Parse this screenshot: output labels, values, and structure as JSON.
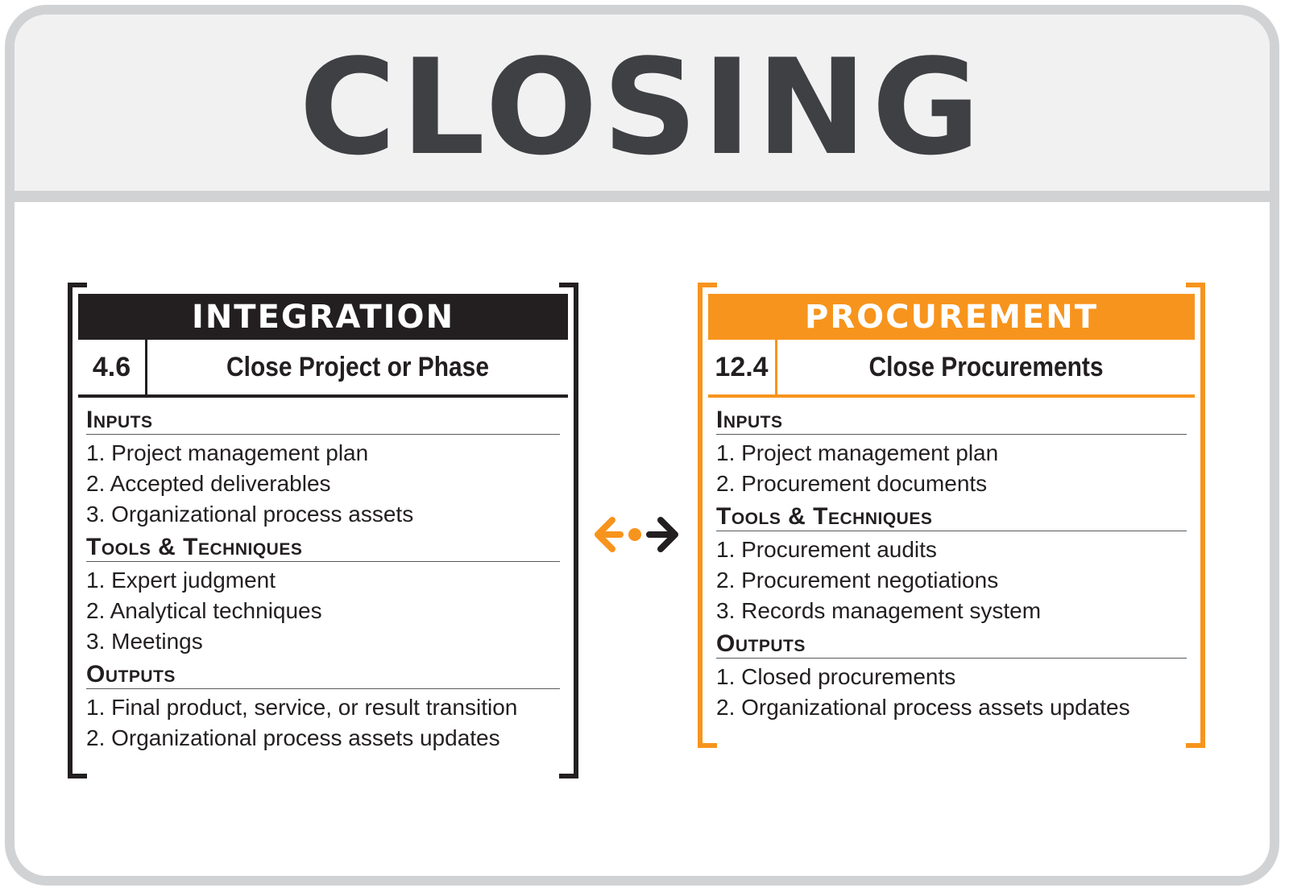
{
  "title": "CLOSING",
  "integration": {
    "area": "INTEGRATION",
    "number": "4.6",
    "process": "Close Project or Phase",
    "inputs_title": "Inputs",
    "inputs": [
      "1. Project management plan",
      "2. Accepted deliverables",
      "3. Organizational process assets"
    ],
    "tools_title": "Tools & Techniques",
    "tools": [
      "1. Expert judgment",
      "2. Analytical techniques",
      "3. Meetings"
    ],
    "outputs_title": "Outputs",
    "outputs": [
      "1. Final product, service, or result transition",
      "2. Organizational process assets updates"
    ],
    "color": "#231f20"
  },
  "procurement": {
    "area": "PROCUREMENT",
    "number": "12.4",
    "process": "Close Procurements",
    "inputs_title": "Inputs",
    "inputs": [
      "1. Project management plan",
      "2. Procurement documents"
    ],
    "tools_title": "Tools & Techniques",
    "tools": [
      "1. Procurement audits",
      "2. Procurement negotiations",
      "3. Records management system"
    ],
    "outputs_title": "Outputs",
    "outputs": [
      "1. Closed procurements",
      "2. Organizational process assets updates"
    ],
    "color": "#f7941d"
  },
  "connector": {
    "left_color": "#f7941d",
    "right_color": "#231f20",
    "icon": "bidirectional-arrow-icon"
  }
}
